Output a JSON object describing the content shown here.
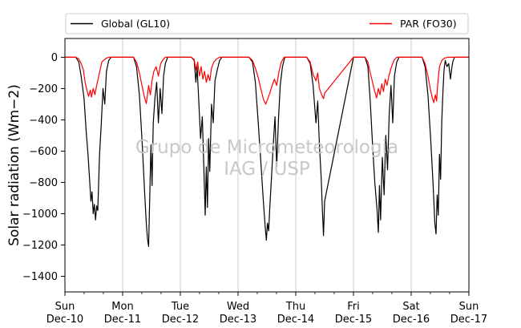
{
  "chart_data": {
    "type": "line",
    "title": "",
    "ylabel": "Solar radiation (Wm−2)",
    "xlabel": "",
    "ylim": [
      -1500,
      120
    ],
    "xlim_days": [
      "2017-12-10",
      "2017-12-17"
    ],
    "yticks": [
      0,
      -200,
      -400,
      -600,
      -800,
      -1000,
      -1200,
      -1400
    ],
    "xticks": [
      {
        "day": "Sun",
        "date": "Dec-10"
      },
      {
        "day": "Mon",
        "date": "Dec-11"
      },
      {
        "day": "Tue",
        "date": "Dec-12"
      },
      {
        "day": "Wed",
        "date": "Dec-13"
      },
      {
        "day": "Thu",
        "date": "Dec-14"
      },
      {
        "day": "Fri",
        "date": "Dec-15"
      },
      {
        "day": "Sat",
        "date": "Dec-16"
      },
      {
        "day": "Sun",
        "date": "Dec-17"
      }
    ],
    "grid": "vertical",
    "legend_position": "top",
    "watermark": [
      "Grupo de Micrometeorologia",
      "IAG / USP"
    ],
    "series": [
      {
        "name": "Global (GL10)",
        "color": "#000000",
        "points": [
          [
            0.0,
            0
          ],
          [
            0.19,
            0
          ],
          [
            0.24,
            -30
          ],
          [
            0.28,
            -120
          ],
          [
            0.33,
            -260
          ],
          [
            0.37,
            -480
          ],
          [
            0.4,
            -620
          ],
          [
            0.43,
            -800
          ],
          [
            0.45,
            -920
          ],
          [
            0.47,
            -860
          ],
          [
            0.49,
            -1000
          ],
          [
            0.51,
            -940
          ],
          [
            0.53,
            -1040
          ],
          [
            0.55,
            -950
          ],
          [
            0.57,
            -980
          ],
          [
            0.6,
            -620
          ],
          [
            0.63,
            -420
          ],
          [
            0.66,
            -200
          ],
          [
            0.69,
            -300
          ],
          [
            0.72,
            -90
          ],
          [
            0.76,
            -20
          ],
          [
            0.8,
            0
          ],
          [
            1.19,
            0
          ],
          [
            1.24,
            -60
          ],
          [
            1.29,
            -240
          ],
          [
            1.34,
            -560
          ],
          [
            1.38,
            -860
          ],
          [
            1.41,
            -1060
          ],
          [
            1.43,
            -1160
          ],
          [
            1.45,
            -1210
          ],
          [
            1.47,
            -900
          ],
          [
            1.49,
            -560
          ],
          [
            1.51,
            -820
          ],
          [
            1.53,
            -420
          ],
          [
            1.56,
            -260
          ],
          [
            1.59,
            -160
          ],
          [
            1.62,
            -420
          ],
          [
            1.65,
            -200
          ],
          [
            1.68,
            -360
          ],
          [
            1.71,
            -120
          ],
          [
            1.74,
            -40
          ],
          [
            1.78,
            0
          ],
          [
            2.19,
            0
          ],
          [
            2.24,
            -20
          ],
          [
            2.27,
            -160
          ],
          [
            2.29,
            -60
          ],
          [
            2.32,
            -280
          ],
          [
            2.35,
            -520
          ],
          [
            2.38,
            -380
          ],
          [
            2.41,
            -740
          ],
          [
            2.43,
            -1010
          ],
          [
            2.45,
            -700
          ],
          [
            2.47,
            -960
          ],
          [
            2.49,
            -520
          ],
          [
            2.51,
            -730
          ],
          [
            2.54,
            -300
          ],
          [
            2.57,
            -420
          ],
          [
            2.6,
            -150
          ],
          [
            2.64,
            -80
          ],
          [
            2.68,
            -20
          ],
          [
            2.72,
            0
          ],
          [
            3.19,
            0
          ],
          [
            3.25,
            -30
          ],
          [
            3.3,
            -160
          ],
          [
            3.35,
            -420
          ],
          [
            3.4,
            -700
          ],
          [
            3.44,
            -930
          ],
          [
            3.47,
            -1080
          ],
          [
            3.49,
            -1170
          ],
          [
            3.51,
            -1060
          ],
          [
            3.53,
            -1110
          ],
          [
            3.55,
            -960
          ],
          [
            3.58,
            -760
          ],
          [
            3.61,
            -560
          ],
          [
            3.64,
            -380
          ],
          [
            3.67,
            -700
          ],
          [
            3.7,
            -400
          ],
          [
            3.73,
            -180
          ],
          [
            3.77,
            -60
          ],
          [
            3.81,
            0
          ],
          [
            4.19,
            0
          ],
          [
            4.25,
            -40
          ],
          [
            4.3,
            -180
          ],
          [
            4.35,
            -420
          ],
          [
            4.38,
            -280
          ],
          [
            4.41,
            -560
          ],
          [
            4.44,
            -770
          ],
          [
            4.46,
            -960
          ],
          [
            4.48,
            -1140
          ],
          [
            4.5,
            -920
          ],
          [
            5.0,
            0
          ],
          [
            5.2,
            0
          ],
          [
            5.25,
            -60
          ],
          [
            5.29,
            -280
          ],
          [
            5.33,
            -560
          ],
          [
            5.37,
            -800
          ],
          [
            5.41,
            -980
          ],
          [
            5.43,
            -1120
          ],
          [
            5.45,
            -820
          ],
          [
            5.47,
            -1040
          ],
          [
            5.5,
            -640
          ],
          [
            5.53,
            -880
          ],
          [
            5.56,
            -500
          ],
          [
            5.59,
            -720
          ],
          [
            5.62,
            -360
          ],
          [
            5.65,
            -180
          ],
          [
            5.68,
            -420
          ],
          [
            5.71,
            -120
          ],
          [
            5.75,
            -30
          ],
          [
            5.79,
            0
          ],
          [
            6.19,
            0
          ],
          [
            6.24,
            -60
          ],
          [
            6.29,
            -240
          ],
          [
            6.34,
            -540
          ],
          [
            6.38,
            -820
          ],
          [
            6.41,
            -1060
          ],
          [
            6.43,
            -1130
          ],
          [
            6.45,
            -880
          ],
          [
            6.47,
            -1010
          ],
          [
            6.49,
            -620
          ],
          [
            6.51,
            -780
          ],
          [
            6.53,
            -400
          ],
          [
            6.55,
            -220
          ],
          [
            6.57,
            -80
          ],
          [
            6.59,
            -20
          ],
          [
            6.62,
            -60
          ],
          [
            6.65,
            -40
          ],
          [
            6.68,
            -140
          ],
          [
            6.7,
            -80
          ],
          [
            6.72,
            -30
          ],
          [
            6.75,
            0
          ],
          [
            7.0,
            0
          ]
        ]
      },
      {
        "name": "PAR (FO30)",
        "color": "#ff0000",
        "points": [
          [
            0.0,
            0
          ],
          [
            0.19,
            0
          ],
          [
            0.24,
            -10
          ],
          [
            0.28,
            -40
          ],
          [
            0.32,
            -80
          ],
          [
            0.35,
            -160
          ],
          [
            0.38,
            -210
          ],
          [
            0.41,
            -250
          ],
          [
            0.44,
            -210
          ],
          [
            0.46,
            -255
          ],
          [
            0.49,
            -200
          ],
          [
            0.52,
            -240
          ],
          [
            0.55,
            -180
          ],
          [
            0.58,
            -130
          ],
          [
            0.61,
            -80
          ],
          [
            0.64,
            -30
          ],
          [
            0.67,
            -20
          ],
          [
            0.72,
            -5
          ],
          [
            0.76,
            0
          ],
          [
            1.19,
            0
          ],
          [
            1.24,
            -30
          ],
          [
            1.29,
            -100
          ],
          [
            1.34,
            -190
          ],
          [
            1.38,
            -260
          ],
          [
            1.41,
            -295
          ],
          [
            1.43,
            -240
          ],
          [
            1.45,
            -180
          ],
          [
            1.48,
            -240
          ],
          [
            1.51,
            -150
          ],
          [
            1.54,
            -90
          ],
          [
            1.58,
            -60
          ],
          [
            1.62,
            -120
          ],
          [
            1.66,
            -40
          ],
          [
            1.7,
            -15
          ],
          [
            1.74,
            0
          ],
          [
            2.19,
            0
          ],
          [
            2.24,
            -15
          ],
          [
            2.27,
            -80
          ],
          [
            2.3,
            -30
          ],
          [
            2.33,
            -120
          ],
          [
            2.36,
            -60
          ],
          [
            2.39,
            -140
          ],
          [
            2.42,
            -90
          ],
          [
            2.45,
            -160
          ],
          [
            2.48,
            -110
          ],
          [
            2.51,
            -150
          ],
          [
            2.54,
            -70
          ],
          [
            2.58,
            -30
          ],
          [
            2.63,
            -10
          ],
          [
            2.68,
            0
          ],
          [
            3.19,
            0
          ],
          [
            3.25,
            -20
          ],
          [
            3.3,
            -70
          ],
          [
            3.35,
            -130
          ],
          [
            3.4,
            -210
          ],
          [
            3.44,
            -270
          ],
          [
            3.48,
            -300
          ],
          [
            3.51,
            -270
          ],
          [
            3.55,
            -230
          ],
          [
            3.59,
            -180
          ],
          [
            3.63,
            -140
          ],
          [
            3.67,
            -180
          ],
          [
            3.71,
            -90
          ],
          [
            3.75,
            -30
          ],
          [
            3.8,
            0
          ],
          [
            4.19,
            0
          ],
          [
            4.25,
            -30
          ],
          [
            4.3,
            -110
          ],
          [
            4.35,
            -150
          ],
          [
            4.38,
            -100
          ],
          [
            4.41,
            -200
          ],
          [
            4.45,
            -240
          ],
          [
            4.48,
            -265
          ],
          [
            4.5,
            -230
          ],
          [
            5.0,
            0
          ],
          [
            5.2,
            0
          ],
          [
            5.25,
            -30
          ],
          [
            5.29,
            -100
          ],
          [
            5.33,
            -160
          ],
          [
            5.37,
            -220
          ],
          [
            5.4,
            -260
          ],
          [
            5.43,
            -200
          ],
          [
            5.46,
            -240
          ],
          [
            5.49,
            -170
          ],
          [
            5.52,
            -220
          ],
          [
            5.55,
            -140
          ],
          [
            5.58,
            -180
          ],
          [
            5.62,
            -110
          ],
          [
            5.66,
            -60
          ],
          [
            5.7,
            -20
          ],
          [
            5.75,
            0
          ],
          [
            6.19,
            0
          ],
          [
            6.24,
            -40
          ],
          [
            6.29,
            -120
          ],
          [
            6.33,
            -200
          ],
          [
            6.36,
            -250
          ],
          [
            6.39,
            -290
          ],
          [
            6.42,
            -240
          ],
          [
            6.44,
            -280
          ],
          [
            6.46,
            -170
          ],
          [
            6.49,
            -60
          ],
          [
            6.53,
            -20
          ],
          [
            6.58,
            -5
          ],
          [
            6.63,
            0
          ],
          [
            7.0,
            0
          ]
        ]
      }
    ]
  }
}
